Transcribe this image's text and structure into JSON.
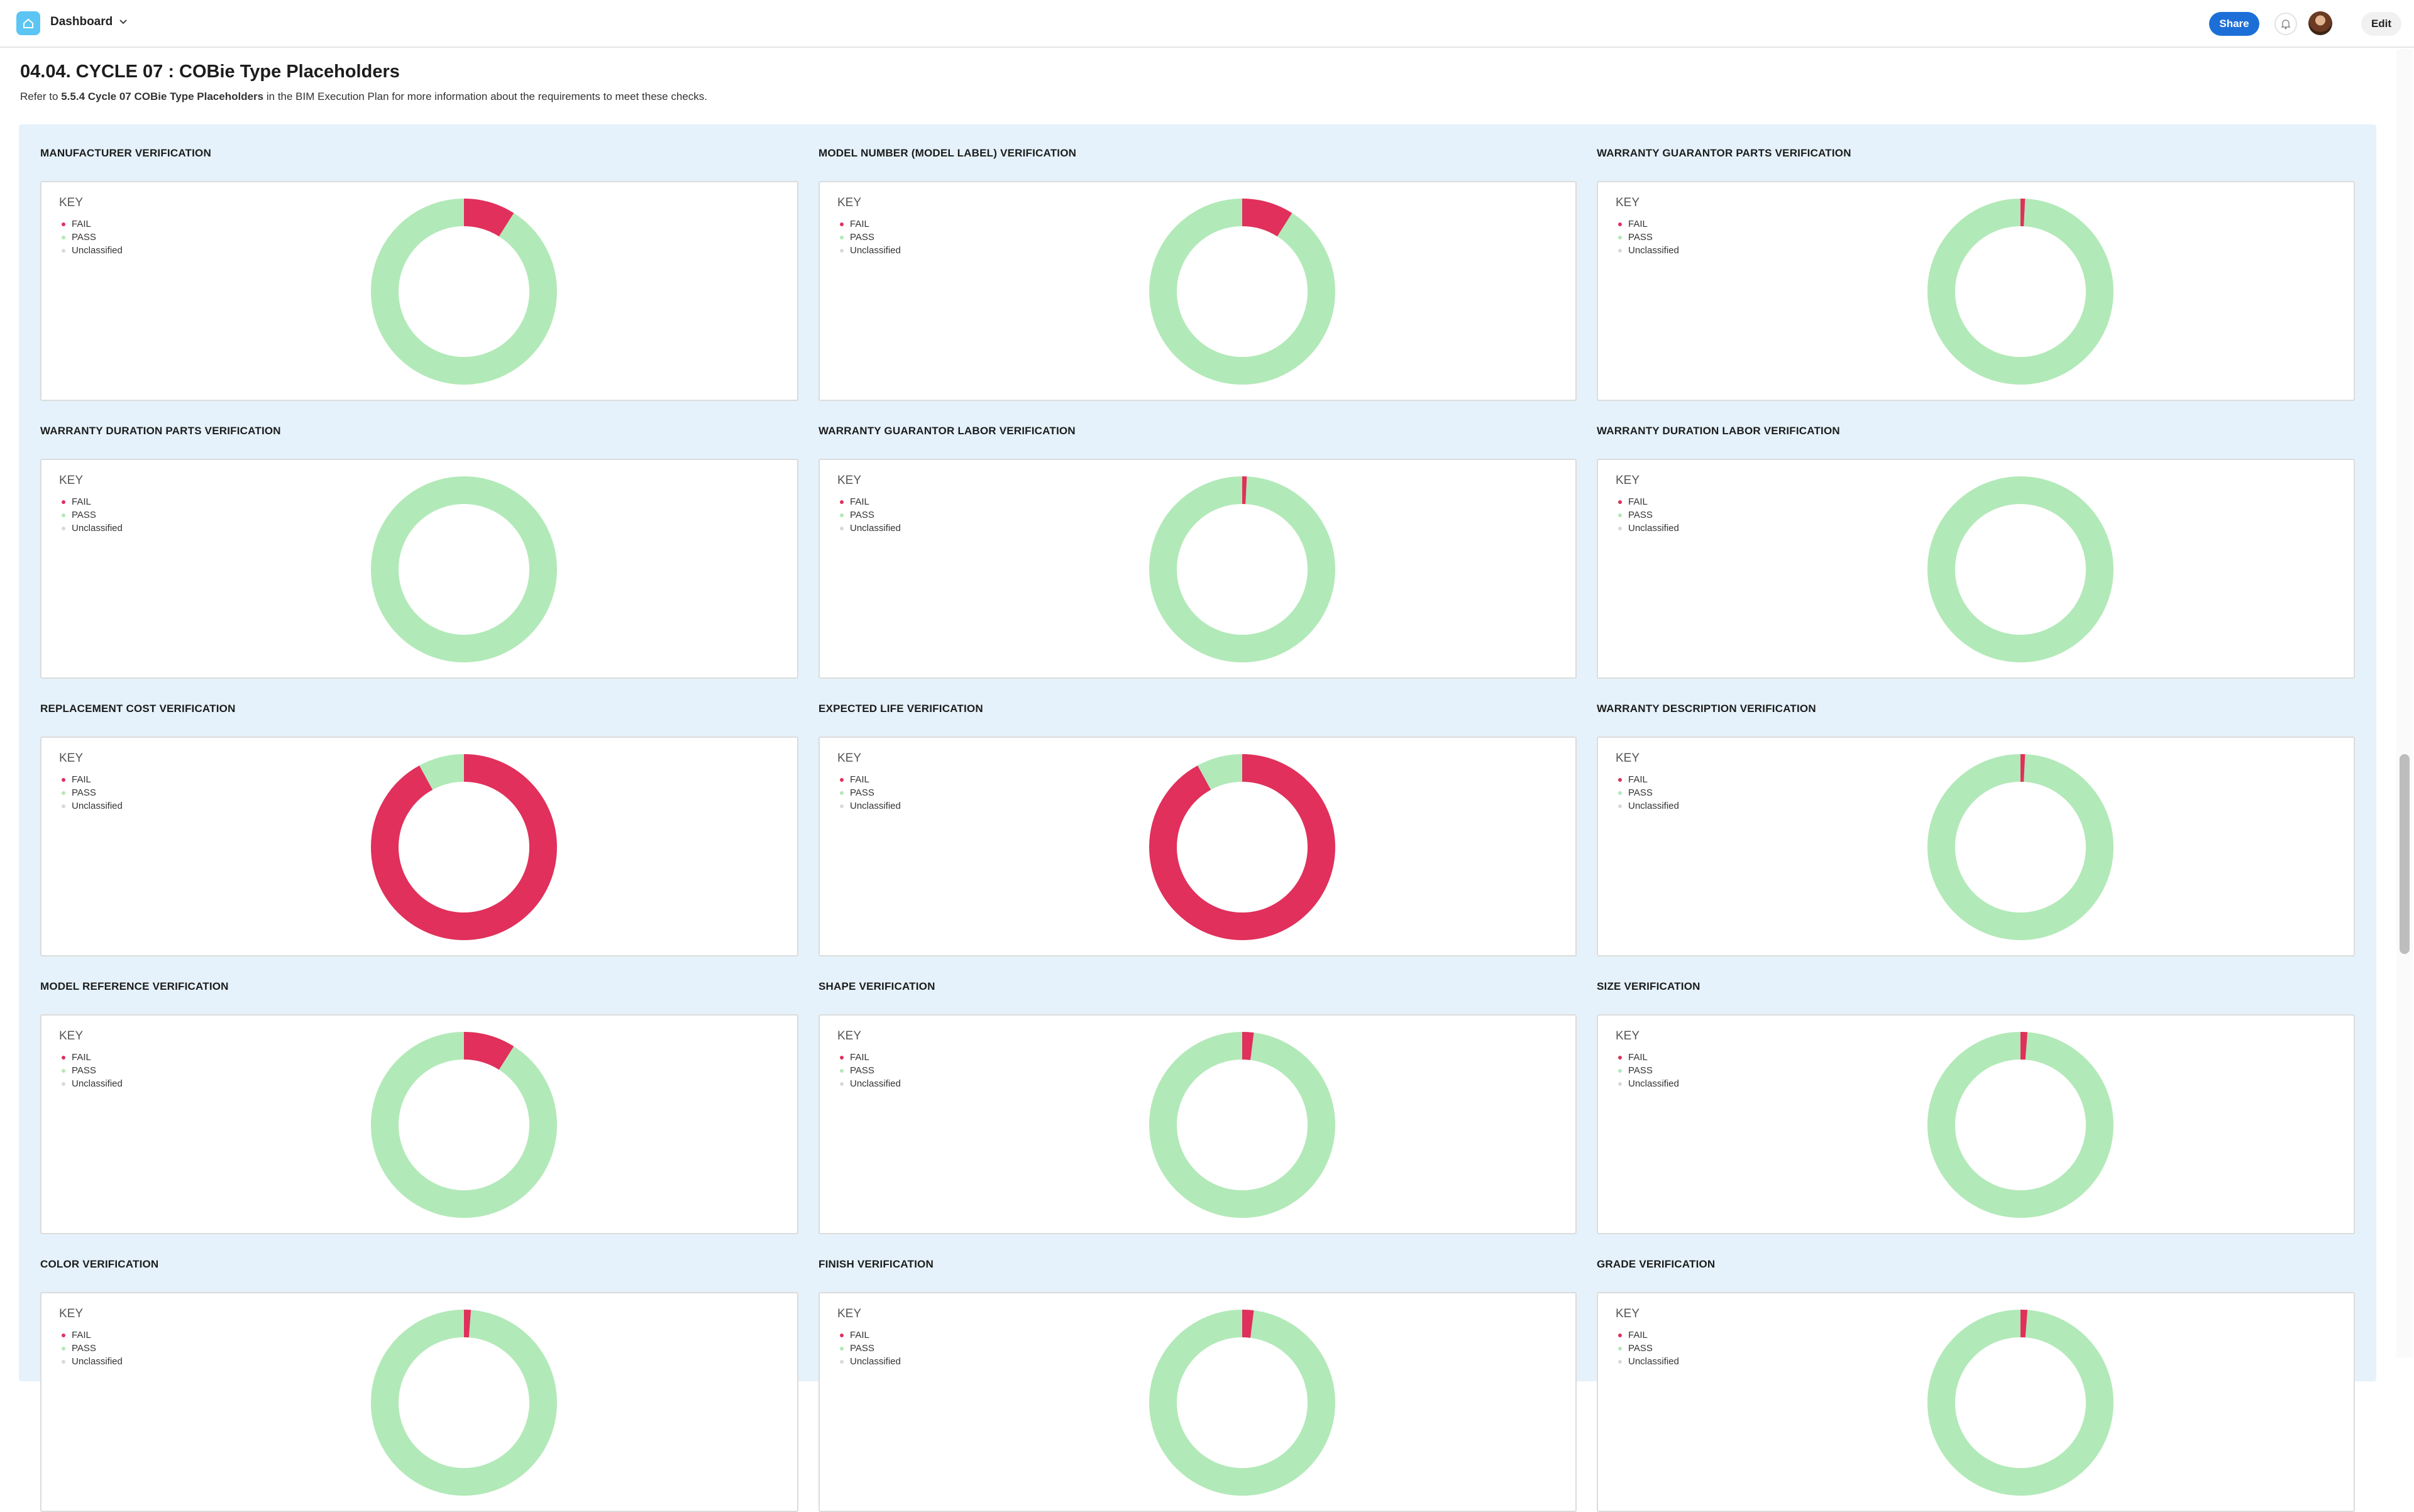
{
  "topbar": {
    "title": "Dashboard",
    "share_label": "Share",
    "edit_label": "Edit"
  },
  "section": {
    "title": "04.04. CYCLE 07 : COBie Type Placeholders",
    "desc_prefix": "Refer to",
    "desc_link": "5.5.4 Cycle 07 COBie Type Placeholders",
    "desc_suffix": "in the BIM Execution Plan for more information about the requirements to meet these checks."
  },
  "legend": {
    "title": "KEY",
    "items": [
      "FAIL",
      "PASS",
      "Unclassified"
    ]
  },
  "colors": {
    "fail": "#e0305b",
    "pass": "#b2e9b8",
    "unclassified": "#d9d9d9",
    "accent": "#1d6fd8"
  },
  "charts": [
    {
      "title": "MANUFACTURER VERIFICATION",
      "fail": 0.09,
      "pass": 0.91
    },
    {
      "title": "MODEL NUMBER (MODEL LABEL) VERIFICATION",
      "fail": 0.09,
      "pass": 0.91
    },
    {
      "title": "WARRANTY GUARANTOR PARTS VERIFICATION",
      "fail": 0.008,
      "pass": 0.992
    },
    {
      "title": "WARRANTY DURATION PARTS VERIFICATION",
      "fail": 0,
      "pass": 1
    },
    {
      "title": "WARRANTY GUARANTOR LABOR VERIFICATION",
      "fail": 0.008,
      "pass": 0.992
    },
    {
      "title": "WARRANTY DURATION LABOR VERIFICATION",
      "fail": 0,
      "pass": 1
    },
    {
      "title": "REPLACEMENT COST VERIFICATION",
      "fail": 0.92,
      "pass": 0.08
    },
    {
      "title": "EXPECTED LIFE VERIFICATION",
      "fail": 0.92,
      "pass": 0.08
    },
    {
      "title": "WARRANTY DESCRIPTION VERIFICATION",
      "fail": 0.008,
      "pass": 0.992
    },
    {
      "title": "MODEL REFERENCE VERIFICATION",
      "fail": 0.09,
      "pass": 0.91
    },
    {
      "title": "SHAPE VERIFICATION",
      "fail": 0.02,
      "pass": 0.98
    },
    {
      "title": "SIZE VERIFICATION",
      "fail": 0.012,
      "pass": 0.988
    },
    {
      "title": "COLOR VERIFICATION",
      "fail": 0.012,
      "pass": 0.988
    },
    {
      "title": "FINISH VERIFICATION",
      "fail": 0.02,
      "pass": 0.98
    },
    {
      "title": "GRADE VERIFICATION",
      "fail": 0.012,
      "pass": 0.988
    }
  ]
}
